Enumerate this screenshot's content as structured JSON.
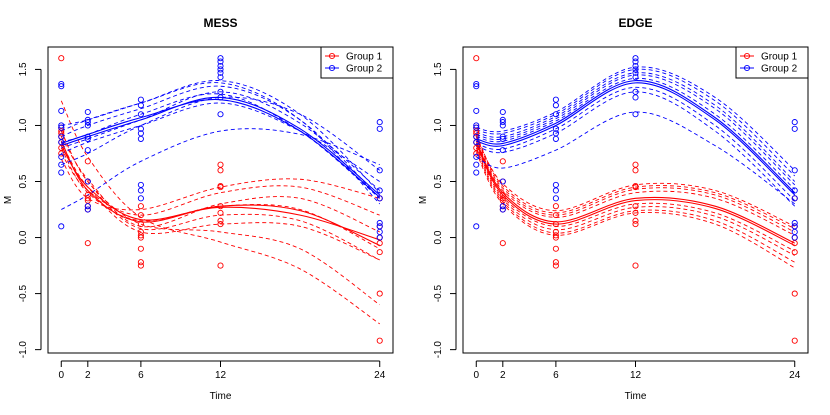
{
  "chart_data": [
    {
      "type": "line",
      "title": "MESS",
      "xlabel": "Time",
      "ylabel": "M",
      "xticks": [
        0,
        2,
        6,
        12,
        24
      ],
      "yticks": [
        -1.0,
        -0.5,
        0.0,
        0.5,
        1.0,
        1.5
      ],
      "ytick_labels": [
        "-1.0",
        "-0.5",
        "0.0",
        "0.5",
        "1.0",
        "1.5"
      ],
      "xlim": [
        -1,
        25
      ],
      "ylim": [
        -1.03,
        1.7
      ],
      "legend": {
        "position": "top-right",
        "entries": [
          {
            "label": "Group 1",
            "color": "#ff0000"
          },
          {
            "label": "Group 2",
            "color": "#0000ff"
          }
        ]
      },
      "points": [
        {
          "group": 1,
          "x": 0,
          "y": [
            1.6,
            0.98,
            0.95,
            0.93,
            0.9,
            0.85,
            0.8,
            0.75
          ]
        },
        {
          "group": 1,
          "x": 2,
          "y": [
            0.68,
            0.5,
            0.38,
            0.35,
            0.33,
            0.28,
            0.25,
            -0.05
          ]
        },
        {
          "group": 1,
          "x": 6,
          "y": [
            0.28,
            0.2,
            0.12,
            0.05,
            0.02,
            0.0,
            -0.1,
            -0.22,
            -0.25
          ]
        },
        {
          "group": 1,
          "x": 12,
          "y": [
            0.65,
            0.6,
            0.46,
            0.45,
            0.28,
            0.22,
            0.15,
            0.12,
            -0.25
          ]
        },
        {
          "group": 1,
          "x": 24,
          "y": [
            0.35,
            0.1,
            0.0,
            -0.05,
            -0.13,
            -0.5,
            -0.92
          ]
        },
        {
          "group": 2,
          "x": 0,
          "y": [
            1.37,
            1.35,
            1.13,
            1.0,
            0.98,
            0.9,
            0.85,
            0.72,
            0.65,
            0.58,
            0.1
          ]
        },
        {
          "group": 2,
          "x": 2,
          "y": [
            1.12,
            1.05,
            1.03,
            1.0,
            0.9,
            0.88,
            0.78,
            0.5,
            0.28,
            0.25
          ]
        },
        {
          "group": 2,
          "x": 6,
          "y": [
            1.23,
            1.18,
            1.1,
            0.97,
            0.93,
            0.88,
            0.47,
            0.42,
            0.35
          ]
        },
        {
          "group": 2,
          "x": 12,
          "y": [
            1.6,
            1.57,
            1.53,
            1.5,
            1.47,
            1.43,
            1.3,
            1.25,
            1.1
          ]
        },
        {
          "group": 2,
          "x": 24,
          "y": [
            1.03,
            0.97,
            0.6,
            0.42,
            0.35,
            0.13,
            0.1,
            0.05,
            0.0
          ]
        }
      ],
      "series": [
        {
          "group": 1,
          "style": "solid",
          "x": [
            0,
            2,
            6,
            12,
            18,
            24
          ],
          "y": [
            0.86,
            0.42,
            0.14,
            0.28,
            0.24,
            -0.07
          ]
        },
        {
          "group": 1,
          "style": "solid",
          "x": [
            0,
            2,
            6,
            12,
            18,
            24
          ],
          "y": [
            0.82,
            0.45,
            0.16,
            0.27,
            0.2,
            -0.02
          ]
        },
        {
          "group": 1,
          "style": "dashed",
          "x": [
            0,
            2,
            6,
            12,
            18,
            24
          ],
          "y": [
            1.22,
            0.72,
            0.18,
            -0.04,
            -0.28,
            -0.77
          ]
        },
        {
          "group": 1,
          "style": "dashed",
          "x": [
            0,
            2,
            6,
            12,
            18,
            24
          ],
          "y": [
            0.95,
            0.5,
            0.12,
            0.05,
            -0.1,
            -0.6
          ]
        },
        {
          "group": 1,
          "style": "dashed",
          "x": [
            0,
            2,
            6,
            12,
            18,
            24
          ],
          "y": [
            0.85,
            0.45,
            0.05,
            0.12,
            0.1,
            -0.2
          ]
        },
        {
          "group": 1,
          "style": "dashed",
          "x": [
            0,
            2,
            6,
            12,
            18,
            24
          ],
          "y": [
            0.8,
            0.4,
            0.15,
            0.28,
            0.25,
            -0.1
          ]
        },
        {
          "group": 1,
          "style": "dashed",
          "x": [
            0,
            2,
            6,
            12,
            18,
            24
          ],
          "y": [
            0.75,
            0.42,
            0.2,
            0.4,
            0.45,
            0.2
          ]
        },
        {
          "group": 1,
          "style": "dashed",
          "x": [
            0,
            2,
            6,
            12,
            18,
            24
          ],
          "y": [
            0.7,
            0.35,
            0.25,
            0.45,
            0.52,
            0.35
          ]
        },
        {
          "group": 1,
          "style": "dashed",
          "x": [
            0,
            2,
            6,
            12,
            18,
            24
          ],
          "y": [
            0.9,
            0.52,
            0.1,
            0.3,
            0.35,
            0.05
          ]
        },
        {
          "group": 1,
          "style": "dashed",
          "x": [
            0,
            2,
            6,
            12,
            18,
            24
          ],
          "y": [
            0.95,
            0.5,
            0.08,
            0.2,
            0.15,
            -0.2
          ]
        },
        {
          "group": 2,
          "style": "solid",
          "x": [
            0,
            2,
            6,
            12,
            18,
            24
          ],
          "y": [
            0.82,
            0.9,
            1.05,
            1.25,
            0.97,
            0.38
          ]
        },
        {
          "group": 2,
          "style": "solid",
          "x": [
            0,
            2,
            6,
            12,
            18,
            24
          ],
          "y": [
            0.84,
            0.92,
            1.07,
            1.23,
            0.95,
            0.36
          ]
        },
        {
          "group": 2,
          "style": "dashed",
          "x": [
            0,
            2,
            6,
            12,
            18,
            24
          ],
          "y": [
            0.25,
            0.38,
            0.68,
            0.95,
            0.92,
            0.65
          ]
        },
        {
          "group": 2,
          "style": "dashed",
          "x": [
            0,
            2,
            6,
            12,
            18,
            24
          ],
          "y": [
            0.65,
            0.75,
            1.0,
            1.25,
            1.1,
            0.6
          ]
        },
        {
          "group": 2,
          "style": "dashed",
          "x": [
            0,
            2,
            6,
            12,
            18,
            24
          ],
          "y": [
            0.9,
            1.0,
            1.15,
            1.35,
            1.05,
            0.35
          ]
        },
        {
          "group": 2,
          "style": "dashed",
          "x": [
            0,
            2,
            6,
            12,
            18,
            24
          ],
          "y": [
            0.95,
            1.05,
            1.2,
            1.38,
            1.05,
            0.3
          ]
        },
        {
          "group": 2,
          "style": "dashed",
          "x": [
            0,
            2,
            6,
            12,
            18,
            24
          ],
          "y": [
            0.8,
            0.88,
            1.05,
            1.3,
            1.02,
            0.42
          ]
        },
        {
          "group": 2,
          "style": "dashed",
          "x": [
            0,
            2,
            6,
            12,
            18,
            24
          ],
          "y": [
            0.85,
            0.92,
            1.1,
            1.28,
            0.95,
            0.35
          ]
        },
        {
          "group": 2,
          "style": "dashed",
          "x": [
            0,
            2,
            6,
            12,
            18,
            24
          ],
          "y": [
            1.0,
            1.05,
            1.2,
            1.4,
            1.1,
            0.4
          ]
        },
        {
          "group": 2,
          "style": "dashed",
          "x": [
            0,
            2,
            6,
            12,
            18,
            24
          ],
          "y": [
            0.75,
            0.85,
            1.0,
            1.2,
            0.95,
            0.5
          ]
        }
      ]
    },
    {
      "type": "line",
      "title": "EDGE",
      "xlabel": "Time",
      "ylabel": "M",
      "xticks": [
        0,
        2,
        6,
        12,
        24
      ],
      "yticks": [
        -1.0,
        -0.5,
        0.0,
        0.5,
        1.0,
        1.5
      ],
      "ytick_labels": [
        "-1.0",
        "-0.5",
        "0.0",
        "0.5",
        "1.0",
        "1.5"
      ],
      "xlim": [
        -1,
        25
      ],
      "ylim": [
        -1.03,
        1.7
      ],
      "legend": {
        "position": "top-right",
        "entries": [
          {
            "label": "Group 1",
            "color": "#ff0000"
          },
          {
            "label": "Group 2",
            "color": "#0000ff"
          }
        ]
      },
      "points": [
        {
          "group": 1,
          "x": 0,
          "y": [
            1.6,
            0.98,
            0.95,
            0.93,
            0.9,
            0.85,
            0.8,
            0.75
          ]
        },
        {
          "group": 1,
          "x": 2,
          "y": [
            0.68,
            0.5,
            0.38,
            0.35,
            0.33,
            0.28,
            0.25,
            -0.05
          ]
        },
        {
          "group": 1,
          "x": 6,
          "y": [
            0.28,
            0.2,
            0.12,
            0.05,
            0.02,
            0.0,
            -0.1,
            -0.22,
            -0.25
          ]
        },
        {
          "group": 1,
          "x": 12,
          "y": [
            0.65,
            0.6,
            0.46,
            0.45,
            0.28,
            0.22,
            0.15,
            0.12,
            -0.25
          ]
        },
        {
          "group": 1,
          "x": 24,
          "y": [
            0.35,
            0.1,
            0.0,
            -0.05,
            -0.13,
            -0.5,
            -0.92
          ]
        },
        {
          "group": 2,
          "x": 0,
          "y": [
            1.37,
            1.35,
            1.13,
            1.0,
            0.98,
            0.9,
            0.85,
            0.72,
            0.65,
            0.58,
            0.1
          ]
        },
        {
          "group": 2,
          "x": 2,
          "y": [
            1.12,
            1.05,
            1.03,
            1.0,
            0.9,
            0.88,
            0.78,
            0.5,
            0.28,
            0.25
          ]
        },
        {
          "group": 2,
          "x": 6,
          "y": [
            1.23,
            1.18,
            1.1,
            0.97,
            0.93,
            0.88,
            0.47,
            0.42,
            0.35
          ]
        },
        {
          "group": 2,
          "x": 12,
          "y": [
            1.6,
            1.57,
            1.53,
            1.5,
            1.47,
            1.43,
            1.3,
            1.25,
            1.1
          ]
        },
        {
          "group": 2,
          "x": 24,
          "y": [
            1.03,
            0.97,
            0.6,
            0.42,
            0.35,
            0.13,
            0.1,
            0.05,
            0.0
          ]
        }
      ],
      "series": [
        {
          "group": 1,
          "style": "solid",
          "x": [
            0,
            2,
            6,
            12,
            18,
            24
          ],
          "y": [
            0.84,
            0.38,
            0.12,
            0.33,
            0.26,
            -0.07
          ]
        },
        {
          "group": 1,
          "style": "solid",
          "x": [
            0,
            2,
            6,
            12,
            18,
            24
          ],
          "y": [
            0.86,
            0.4,
            0.14,
            0.35,
            0.28,
            -0.05
          ]
        },
        {
          "group": 1,
          "style": "dashed",
          "x": [
            0,
            2,
            6,
            12,
            18,
            24
          ],
          "y": [
            0.9,
            0.48,
            0.24,
            0.47,
            0.42,
            0.1
          ]
        },
        {
          "group": 1,
          "style": "dashed",
          "x": [
            0,
            2,
            6,
            12,
            18,
            24
          ],
          "y": [
            0.92,
            0.46,
            0.22,
            0.45,
            0.4,
            0.08
          ]
        },
        {
          "group": 1,
          "style": "dashed",
          "x": [
            0,
            2,
            6,
            12,
            18,
            24
          ],
          "y": [
            0.9,
            0.44,
            0.2,
            0.43,
            0.38,
            0.05
          ]
        },
        {
          "group": 1,
          "style": "dashed",
          "x": [
            0,
            2,
            6,
            12,
            18,
            24
          ],
          "y": [
            0.88,
            0.42,
            0.18,
            0.4,
            0.35,
            0.02
          ]
        },
        {
          "group": 1,
          "style": "dashed",
          "x": [
            0,
            2,
            6,
            12,
            18,
            24
          ],
          "y": [
            0.82,
            0.36,
            0.1,
            0.3,
            0.22,
            -0.12
          ]
        },
        {
          "group": 1,
          "style": "dashed",
          "x": [
            0,
            2,
            6,
            12,
            18,
            24
          ],
          "y": [
            0.8,
            0.34,
            0.07,
            0.27,
            0.19,
            -0.16
          ]
        },
        {
          "group": 1,
          "style": "dashed",
          "x": [
            0,
            2,
            6,
            12,
            18,
            24
          ],
          "y": [
            0.78,
            0.32,
            0.04,
            0.24,
            0.15,
            -0.22
          ]
        },
        {
          "group": 1,
          "style": "dashed",
          "x": [
            0,
            2,
            6,
            12,
            18,
            24
          ],
          "y": [
            0.76,
            0.3,
            0.02,
            0.22,
            0.12,
            -0.27
          ]
        },
        {
          "group": 2,
          "style": "solid",
          "x": [
            0,
            2,
            6,
            12,
            18,
            24
          ],
          "y": [
            0.86,
            0.82,
            1.0,
            1.38,
            1.05,
            0.38
          ]
        },
        {
          "group": 2,
          "style": "solid",
          "x": [
            0,
            2,
            6,
            12,
            18,
            24
          ],
          "y": [
            0.88,
            0.84,
            1.02,
            1.4,
            1.07,
            0.4
          ]
        },
        {
          "group": 2,
          "style": "dashed",
          "x": [
            0,
            2,
            6,
            12,
            18,
            24
          ],
          "y": [
            0.98,
            0.95,
            1.12,
            1.52,
            1.25,
            0.6
          ]
        },
        {
          "group": 2,
          "style": "dashed",
          "x": [
            0,
            2,
            6,
            12,
            18,
            24
          ],
          "y": [
            0.96,
            0.93,
            1.1,
            1.5,
            1.22,
            0.55
          ]
        },
        {
          "group": 2,
          "style": "dashed",
          "x": [
            0,
            2,
            6,
            12,
            18,
            24
          ],
          "y": [
            0.94,
            0.9,
            1.08,
            1.47,
            1.18,
            0.5
          ]
        },
        {
          "group": 2,
          "style": "dashed",
          "x": [
            0,
            2,
            6,
            12,
            18,
            24
          ],
          "y": [
            0.92,
            0.88,
            1.06,
            1.45,
            1.15,
            0.47
          ]
        },
        {
          "group": 2,
          "style": "dashed",
          "x": [
            0,
            2,
            6,
            12,
            18,
            24
          ],
          "y": [
            0.9,
            0.86,
            1.04,
            1.42,
            1.1,
            0.43
          ]
        },
        {
          "group": 2,
          "style": "dashed",
          "x": [
            0,
            2,
            6,
            12,
            18,
            24
          ],
          "y": [
            0.84,
            0.79,
            0.97,
            1.34,
            1.0,
            0.33
          ]
        },
        {
          "group": 2,
          "style": "dashed",
          "x": [
            0,
            2,
            6,
            12,
            18,
            24
          ],
          "y": [
            0.82,
            0.76,
            0.93,
            1.3,
            0.95,
            0.28
          ]
        },
        {
          "group": 2,
          "style": "dashed",
          "x": [
            0,
            2,
            6,
            12,
            18,
            24
          ],
          "y": [
            0.72,
            0.62,
            0.78,
            1.12,
            0.82,
            0.3
          ]
        }
      ]
    }
  ]
}
